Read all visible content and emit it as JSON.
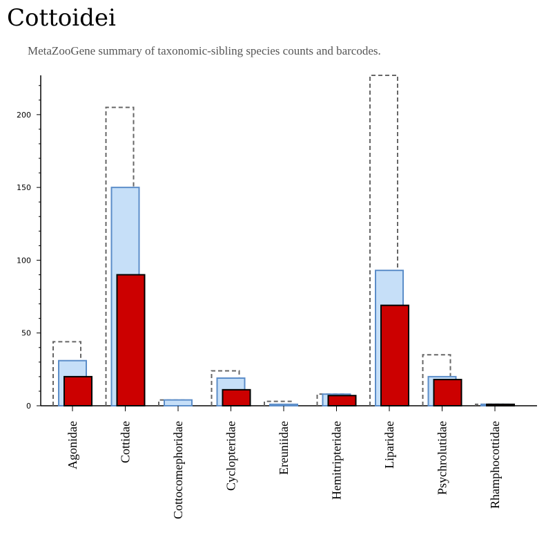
{
  "title": "Cottoidei",
  "subtitle": "MetaZooGene summary of taxonomic-sibling species counts and barcodes.",
  "chart_data": {
    "type": "bar",
    "categories": [
      "Agonidae",
      "Cottidae",
      "Cottocomephoridae",
      "Cyclopteridae",
      "Ereuniidae",
      "Hemitripteridae",
      "Liparidae",
      "Psychrolutidae",
      "Rhamphocottidae"
    ],
    "series": [
      {
        "values": [
          44,
          205,
          4,
          24,
          3,
          8,
          227,
          35,
          1
        ],
        "style": "dashed-outline",
        "color": "#666666"
      },
      {
        "values": [
          31,
          150,
          4,
          19,
          1,
          8,
          93,
          20,
          1
        ],
        "style": "filled",
        "color": "#c6dff8",
        "stroke": "#5b8dc9"
      },
      {
        "values": [
          20,
          90,
          0,
          11,
          0,
          7,
          69,
          18,
          1
        ],
        "style": "filled",
        "color": "#cc0000",
        "stroke": "#000000"
      }
    ],
    "yticks": [
      0,
      50,
      100,
      150,
      200
    ],
    "ylim": [
      0,
      227
    ],
    "xlabel": "",
    "ylabel": "",
    "grid": false,
    "legend": "none"
  }
}
